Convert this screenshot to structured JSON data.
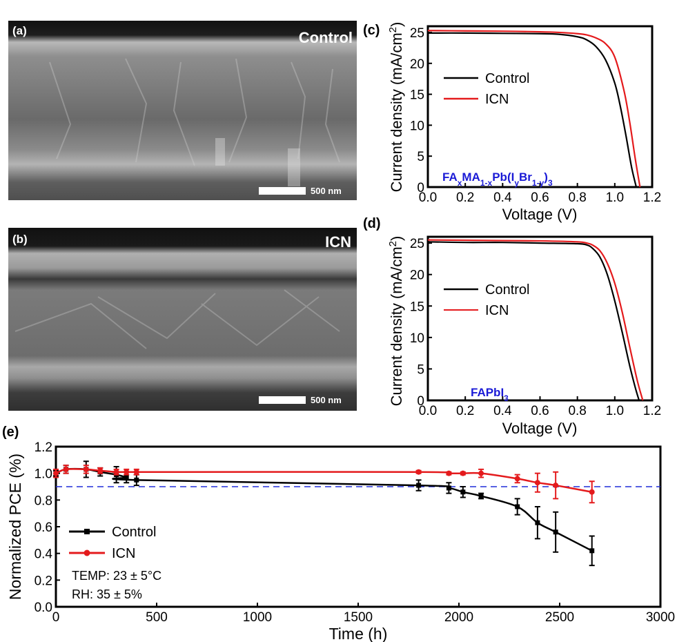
{
  "panels": {
    "a": {
      "letter": "(a)",
      "name": "Control",
      "scale_label": "500 nm"
    },
    "b": {
      "letter": "(b)",
      "name": "ICN",
      "scale_label": "500 nm"
    },
    "c": {
      "letter": "(c)",
      "composition": [
        "FA",
        "x",
        "MA",
        "1-x",
        "Pb(I",
        "y",
        "Br",
        "1-y",
        ")",
        "3"
      ]
    },
    "d": {
      "letter": "(d)",
      "composition": [
        "FAPbI",
        "3"
      ]
    },
    "e": {
      "letter": "(e)",
      "temp_note": "TEMP: 23 ± 5°C",
      "rh_note": "RH: 35 ± 5%"
    }
  },
  "colors": {
    "control": "#000000",
    "icn": "#e41a1c",
    "reference": "#1f2bd8",
    "composition_text": "#1a1ad6"
  },
  "chart_data": [
    {
      "id": "c",
      "type": "line",
      "xlabel": "Voltage (V)",
      "ylabel": [
        "Current density (mA/cm",
        "2",
        ")"
      ],
      "xlim": [
        0.0,
        1.2
      ],
      "ylim": [
        0,
        26
      ],
      "xticks": [
        "0.0",
        "0.2",
        "0.4",
        "0.6",
        "0.8",
        "1.0",
        "1.2"
      ],
      "yticks": [
        "0",
        "5",
        "10",
        "15",
        "20",
        "25"
      ],
      "series": [
        {
          "name": "Control",
          "color": "#000000",
          "x": [
            0.0,
            0.2,
            0.4,
            0.6,
            0.7,
            0.8,
            0.85,
            0.9,
            0.95,
            1.0,
            1.03,
            1.06,
            1.09,
            1.115
          ],
          "y": [
            24.9,
            24.9,
            24.85,
            24.8,
            24.7,
            24.3,
            23.8,
            22.7,
            20.6,
            16.8,
            13.0,
            8.3,
            3.2,
            0
          ]
        },
        {
          "name": "ICN",
          "color": "#e41a1c",
          "x": [
            0.0,
            0.2,
            0.4,
            0.6,
            0.7,
            0.8,
            0.85,
            0.9,
            0.95,
            1.0,
            1.05,
            1.08,
            1.11,
            1.135
          ],
          "y": [
            25.3,
            25.25,
            25.2,
            25.1,
            25.0,
            24.8,
            24.6,
            24.1,
            23.2,
            21.0,
            15.5,
            10.5,
            4.5,
            0
          ]
        }
      ]
    },
    {
      "id": "d",
      "type": "line",
      "xlabel": "Voltage (V)",
      "ylabel": [
        "Current density (mA/cm",
        "2",
        ")"
      ],
      "xlim": [
        0.0,
        1.2
      ],
      "ylim": [
        0,
        26
      ],
      "xticks": [
        "0.0",
        "0.2",
        "0.4",
        "0.6",
        "0.8",
        "1.0",
        "1.2"
      ],
      "yticks": [
        "0",
        "5",
        "10",
        "15",
        "20",
        "25"
      ],
      "series": [
        {
          "name": "Control",
          "color": "#000000",
          "x": [
            0.0,
            0.2,
            0.4,
            0.6,
            0.8,
            0.85,
            0.88,
            0.92,
            0.96,
            1.0,
            1.04,
            1.08,
            1.11,
            1.13
          ],
          "y": [
            25.2,
            25.1,
            25.1,
            25.0,
            24.9,
            24.7,
            24.2,
            22.8,
            20.0,
            15.8,
            10.8,
            5.5,
            2.0,
            0
          ]
        },
        {
          "name": "ICN",
          "color": "#e41a1c",
          "x": [
            0.0,
            0.2,
            0.4,
            0.6,
            0.8,
            0.85,
            0.88,
            0.92,
            0.96,
            1.0,
            1.04,
            1.08,
            1.12,
            1.15
          ],
          "y": [
            25.5,
            25.45,
            25.4,
            25.35,
            25.2,
            25.0,
            24.7,
            23.8,
            21.8,
            18.6,
            14.0,
            8.5,
            3.2,
            0
          ]
        }
      ]
    },
    {
      "id": "e",
      "type": "line",
      "xlabel": "Time (h)",
      "ylabel": "Normalized PCE (%)",
      "xlim": [
        0,
        3000
      ],
      "ylim": [
        0.0,
        1.2
      ],
      "xticks": [
        "0",
        "500",
        "1000",
        "1500",
        "2000",
        "2500",
        "3000"
      ],
      "yticks": [
        "0.0",
        "0.2",
        "0.4",
        "0.6",
        "0.8",
        "1.0",
        "1.2"
      ],
      "reference_line": 0.9,
      "series": [
        {
          "name": "Control",
          "color": "#000000",
          "x": [
            0,
            50,
            150,
            220,
            300,
            350,
            400,
            1800,
            1950,
            2020,
            2110,
            2290,
            2390,
            2480,
            2660
          ],
          "y": [
            1.0,
            1.03,
            1.03,
            1.01,
            0.99,
            0.97,
            0.95,
            0.91,
            0.89,
            0.86,
            0.83,
            0.75,
            0.63,
            0.56,
            0.42
          ],
          "err": [
            0.02,
            0.03,
            0.06,
            0.03,
            0.06,
            0.04,
            0.04,
            0.04,
            0.04,
            0.04,
            0.02,
            0.06,
            0.12,
            0.15,
            0.11
          ]
        },
        {
          "name": "ICN",
          "color": "#e41a1c",
          "x": [
            0,
            50,
            150,
            220,
            300,
            350,
            400,
            1800,
            1950,
            2020,
            2110,
            2290,
            2390,
            2480,
            2660
          ],
          "y": [
            1.0,
            1.03,
            1.03,
            1.02,
            1.01,
            1.01,
            1.01,
            1.01,
            1.0,
            1.0,
            1.0,
            0.96,
            0.93,
            0.91,
            0.86
          ],
          "err": [
            0.03,
            0.03,
            0.03,
            0.02,
            0.02,
            0.02,
            0.02,
            0.01,
            0.01,
            0.01,
            0.03,
            0.03,
            0.07,
            0.1,
            0.08
          ]
        }
      ]
    }
  ]
}
